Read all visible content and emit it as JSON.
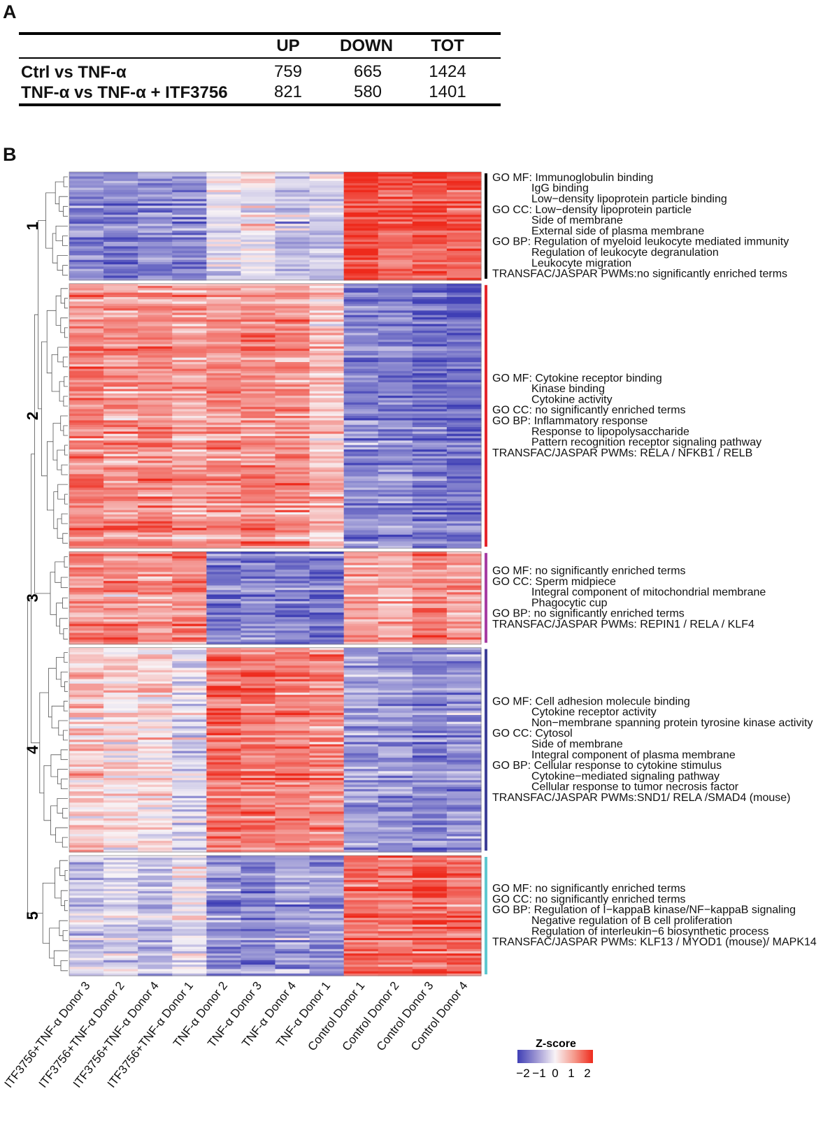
{
  "panel_a": {
    "label": "A",
    "columns": [
      "UP",
      "DOWN",
      "TOT"
    ],
    "rows": [
      {
        "label": "Ctrl vs TNF-α",
        "values": [
          "759",
          "665",
          "1424"
        ]
      },
      {
        "label": "TNF-α vs TNF-α + ITF3756",
        "values": [
          "821",
          "580",
          "1401"
        ]
      }
    ]
  },
  "panel_b": {
    "label": "B"
  },
  "chart_data": {
    "type": "heatmap",
    "title": "",
    "color_scale": {
      "title": "Z-score",
      "range": [
        -2,
        2
      ],
      "ticks": [
        "−2",
        "−1",
        "0",
        "1",
        "2"
      ],
      "low": "#3f3fb5",
      "mid": "#f8f3f6",
      "high": "#ee2a1c"
    },
    "columns": [
      "ITF3756+TNF-α Donor 3",
      "ITF3756+TNF-α Donor 2",
      "ITF3756+TNF-α Donor 4",
      "ITF3756+TNF-α Donor 1",
      "TNF-α Donor 2",
      "TNF-α Donor 3",
      "TNF-α Donor 4",
      "TNF-α Donor 1",
      "Control Donor 1",
      "Control Donor 2",
      "Control Donor 3",
      "Control Donor 4"
    ],
    "clusters": [
      {
        "id": "1",
        "bar_color": "#000000",
        "relative_gene_count": 0.9,
        "mean_zscore": [
          -1.2,
          -1.3,
          -1.1,
          -1.1,
          -0.2,
          -0.1,
          -0.5,
          -0.4,
          1.7,
          1.5,
          1.6,
          1.5
        ],
        "annotations": [
          "GO MF: Immunoglobulin binding",
          "IgG binding",
          "Low−density lipoprotein particle binding",
          "GO CC: Low−density lipoprotein particle",
          "Side of membrane",
          "External side of plasma membrane",
          "GO BP: Regulation of myeloid leukocyte mediated immunity",
          "Regulation of leukocyte degranulation",
          "Leukocyte migration",
          "TRANSFAC/JASPAR PWMs:no significantly enriched terms"
        ]
      },
      {
        "id": "2",
        "bar_color": "#e4262b",
        "relative_gene_count": 2.2,
        "mean_zscore": [
          1.1,
          0.9,
          1.0,
          0.8,
          1.0,
          1.0,
          0.9,
          0.5,
          -1.3,
          -1.2,
          -1.5,
          -1.5
        ],
        "annotations": [
          "GO MF: Cytokine receptor binding",
          "Kinase binding",
          "Cytokine activity",
          "GO CC: no significantly enriched terms",
          "GO BP: Inflammatory response",
          "Response to lipopolysaccharide",
          "Pattern recognition receptor signaling pathway",
          "TRANSFAC/JASPAR PWMs: RELA / NFKB1 / RELB"
        ]
      },
      {
        "id": "3",
        "bar_color": "#a63da3",
        "relative_gene_count": 0.77,
        "mean_zscore": [
          1.0,
          1.0,
          0.9,
          1.1,
          -1.4,
          -1.3,
          -1.3,
          -1.4,
          0.8,
          0.6,
          1.1,
          0.8
        ],
        "annotations": [
          "GO MF: no significantly enriched terms",
          "GO CC: Sperm midpiece",
          "Integral component of mitochondrial membrane",
          "Phagocytic cup",
          "GO BP: no significantly enriched terms",
          "TRANSFAC/JASPAR PWMs: REPIN1 / RELA / KLF4"
        ]
      },
      {
        "id": "4",
        "bar_color": "#3d3f96",
        "relative_gene_count": 1.7,
        "mean_zscore": [
          0.4,
          0.3,
          0.2,
          -0.3,
          1.4,
          1.3,
          1.2,
          1.0,
          -0.9,
          -1.0,
          -1.2,
          -1.0
        ],
        "annotations": [
          "GO MF: Cell adhesion molecule binding",
          "Cytokine receptor activity",
          "Non−membrane spanning protein tyrosine kinase activity",
          "GO CC: Cytosol",
          "Side of membrane",
          "Integral component of plasma membrane",
          "GO BP: Cellular response to cytokine stimulus",
          "Cytokine−mediated signaling pathway",
          "Cellular response to tumor necrosis factor",
          "TRANSFAC/JASPAR PWMs:SND1/ RELA /SMAD4 (mouse)"
        ]
      },
      {
        "id": "5",
        "bar_color": "#5ec8cf",
        "relative_gene_count": 1.0,
        "mean_zscore": [
          -0.5,
          -0.3,
          -0.6,
          -0.1,
          -1.2,
          -1.2,
          -0.9,
          -1.0,
          1.4,
          1.2,
          1.5,
          1.3
        ],
        "annotations": [
          "GO MF: no significantly enriched terms",
          "GO CC: no significantly enriched terms",
          "GO BP: Regulation of I−kappaB kinase/NF−kappaB signaling",
          "Negative regulation of B cell proliferation",
          "Regulation of interleukin−6 biosynthetic process",
          "TRANSFAC/JASPAR PWMs: KLF13 / MYOD1 (mouse)/ MAPK14"
        ]
      }
    ]
  }
}
